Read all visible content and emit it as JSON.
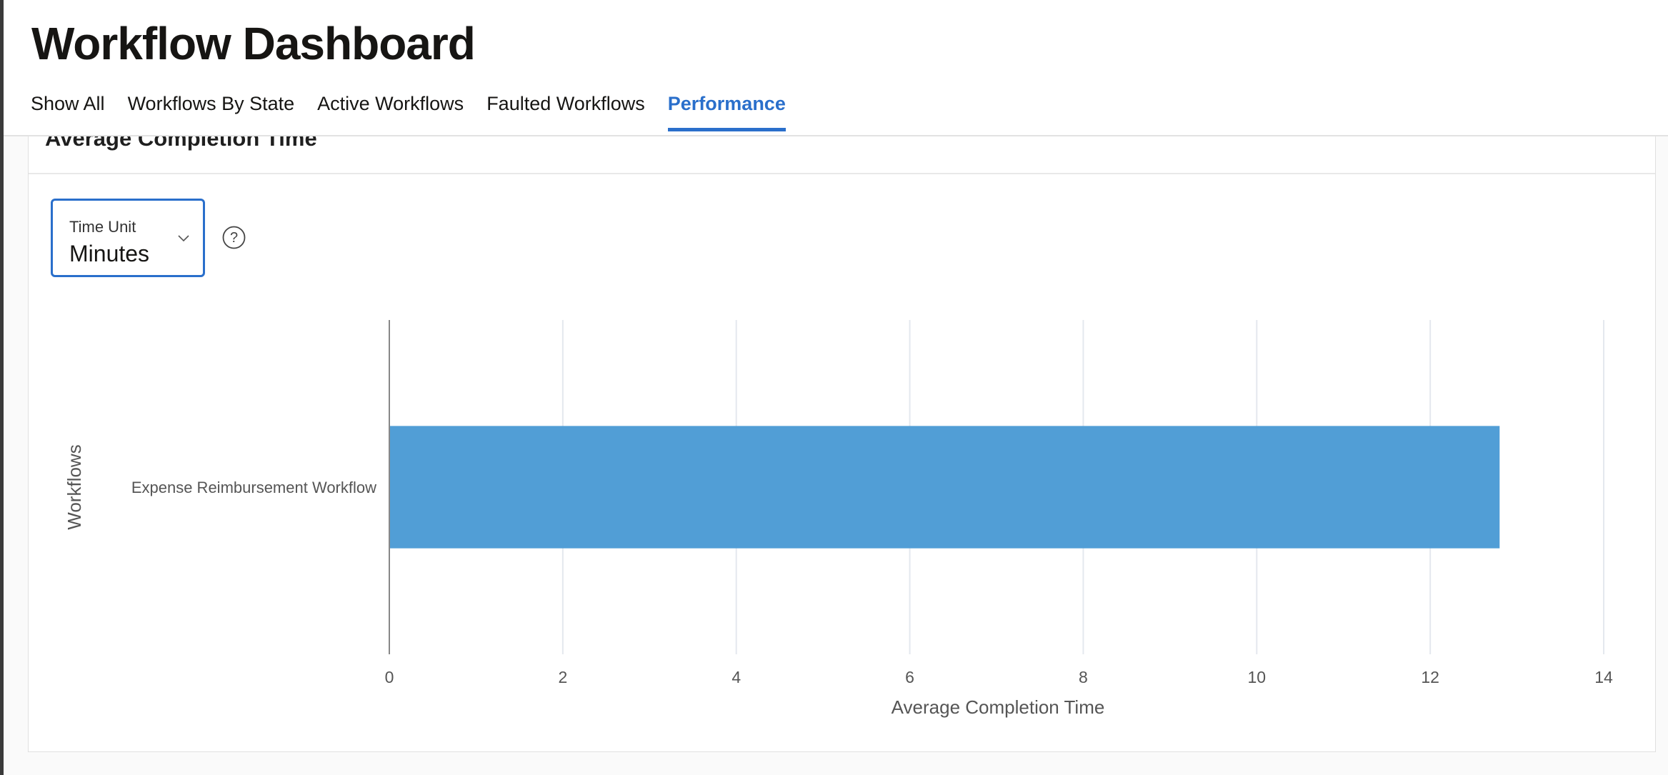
{
  "header": {
    "title": "Workflow Dashboard",
    "tabs": [
      {
        "label": "Show All",
        "active": false
      },
      {
        "label": "Workflows By State",
        "active": false
      },
      {
        "label": "Active Workflows",
        "active": false
      },
      {
        "label": "Faulted Workflows",
        "active": false
      },
      {
        "label": "Performance",
        "active": true
      }
    ],
    "accent_color": "#2a6fcb"
  },
  "card": {
    "title": "Average Completion Time",
    "time_unit": {
      "label": "Time Unit",
      "value": "Minutes",
      "icon": "chevron-down-icon"
    },
    "help_icon": "question-circle-icon"
  },
  "chart_data": {
    "type": "bar",
    "orientation": "horizontal",
    "categories": [
      "Expense Reimbursement Workflow"
    ],
    "values": [
      12.8
    ],
    "xlabel": "Average Completion Time",
    "ylabel": "Workflows",
    "xlim": [
      0,
      14
    ],
    "xticks": [
      "0",
      "2",
      "4",
      "6",
      "8",
      "10",
      "12",
      "14"
    ],
    "grid": true,
    "bar_color": "#519ed6"
  }
}
